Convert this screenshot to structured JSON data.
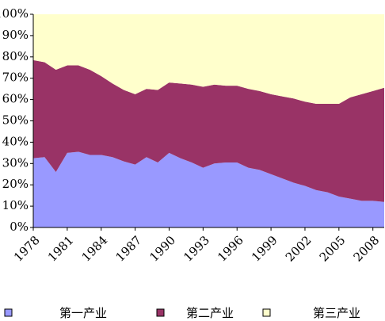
{
  "chart_data": {
    "type": "stacked-area",
    "x": [
      1978,
      1979,
      1980,
      1981,
      1982,
      1983,
      1984,
      1985,
      1986,
      1987,
      1988,
      1989,
      1990,
      1991,
      1992,
      1993,
      1994,
      1995,
      1996,
      1997,
      1998,
      1999,
      2000,
      2001,
      2002,
      2003,
      2004,
      2005,
      2006,
      2007,
      2008,
      2009
    ],
    "xlim": [
      1978,
      2009
    ],
    "xticks": [
      1978,
      1981,
      1984,
      1987,
      1990,
      1993,
      1996,
      1999,
      2002,
      2005,
      2008
    ],
    "ylim": [
      0,
      100
    ],
    "yticks": [
      {
        "value": 0,
        "label": "0%"
      },
      {
        "value": 10,
        "label": "10%"
      },
      {
        "value": 20,
        "label": "20%"
      },
      {
        "value": 30,
        "label": "30%"
      },
      {
        "value": 40,
        "label": "40%"
      },
      {
        "value": 50,
        "label": "50%"
      },
      {
        "value": 60,
        "label": "60%"
      },
      {
        "value": 70,
        "label": "70%"
      },
      {
        "value": 80,
        "label": "80%"
      },
      {
        "value": 90,
        "label": "90%"
      },
      {
        "value": 100,
        "label": "100%"
      }
    ],
    "legend": "bottom",
    "series": [
      {
        "name": "第一产业",
        "color": "#9999ff",
        "values": [
          32.5,
          33,
          26,
          35,
          35.5,
          34,
          34,
          33,
          31,
          29.5,
          33,
          30.5,
          35,
          32.5,
          30.5,
          28,
          30,
          30.5,
          30.5,
          28,
          27,
          25,
          23,
          21,
          19.5,
          17.5,
          16.5,
          14.5,
          13.5,
          12.5,
          12.5,
          12
        ]
      },
      {
        "name": "第二产业",
        "color": "#993366",
        "values": [
          46,
          44.5,
          48,
          41,
          40.5,
          40,
          37,
          34.5,
          33.5,
          33,
          32,
          34,
          33,
          35,
          36.5,
          38,
          37,
          36,
          36,
          37,
          37,
          37.5,
          38.5,
          39.5,
          39.5,
          40.5,
          41.5,
          43.5,
          47.5,
          50,
          51.5,
          53.5
        ]
      },
      {
        "name": "第三产业",
        "color": "#ffffcc",
        "values": [
          21.5,
          22.5,
          26,
          24,
          24,
          26,
          29,
          32.5,
          35.5,
          37.5,
          35,
          35.5,
          32,
          32.5,
          33,
          34,
          33,
          33.5,
          33.5,
          35,
          36,
          37.5,
          38.5,
          39.5,
          41,
          42,
          42,
          42,
          39,
          37.5,
          36,
          34.5
        ]
      }
    ]
  }
}
